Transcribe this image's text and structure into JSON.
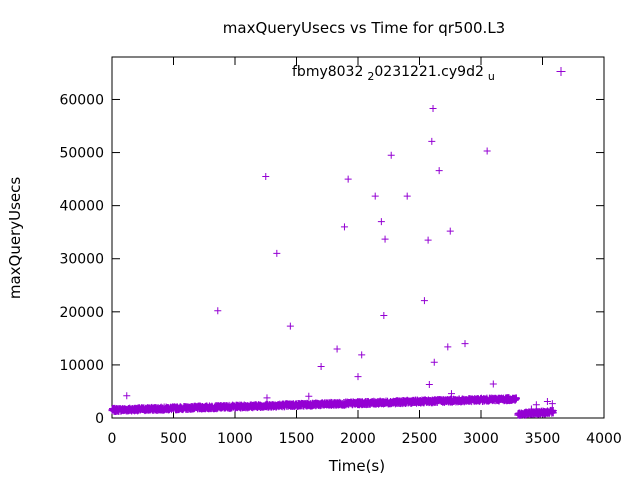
{
  "chart_data": {
    "type": "scatter",
    "title": "maxQueryUsecs vs Time for qr500.L3",
    "xlabel": "Time(s)",
    "ylabel": "maxQueryUsecs",
    "xlim": [
      0,
      4000
    ],
    "ylim": [
      0,
      68000
    ],
    "xticks": [
      0,
      500,
      1000,
      1500,
      2000,
      2500,
      3000,
      3500,
      4000
    ],
    "yticks": [
      0,
      10000,
      20000,
      30000,
      40000,
      50000,
      60000
    ],
    "grid": false,
    "legend_position": "top-right",
    "marker": "plus",
    "color": "#9400d3",
    "series": [
      {
        "name": "fbmy8032_20231221.cy9d2_u",
        "name_parts": [
          "fbmy8032",
          "2",
          "0231221.cy9d2",
          "u"
        ],
        "baseline_segments": [
          {
            "x_start": 0,
            "x_end": 3290,
            "y_start": 1500,
            "y_end": 3600,
            "spread": 300
          },
          {
            "x_start": 3300,
            "x_end": 3590,
            "y_start": 700,
            "y_end": 1200,
            "spread": 300
          }
        ],
        "points": [
          {
            "x": 120,
            "y": 4200
          },
          {
            "x": 860,
            "y": 20200
          },
          {
            "x": 1250,
            "y": 45500
          },
          {
            "x": 1260,
            "y": 3800
          },
          {
            "x": 1340,
            "y": 31000
          },
          {
            "x": 1450,
            "y": 17300
          },
          {
            "x": 1600,
            "y": 4100
          },
          {
            "x": 1700,
            "y": 9700
          },
          {
            "x": 1830,
            "y": 13000
          },
          {
            "x": 1890,
            "y": 36000
          },
          {
            "x": 1920,
            "y": 45000
          },
          {
            "x": 2000,
            "y": 7800
          },
          {
            "x": 2030,
            "y": 11900
          },
          {
            "x": 2140,
            "y": 41800
          },
          {
            "x": 2190,
            "y": 37000
          },
          {
            "x": 2210,
            "y": 19300
          },
          {
            "x": 2220,
            "y": 33700
          },
          {
            "x": 2270,
            "y": 49500
          },
          {
            "x": 2400,
            "y": 41800
          },
          {
            "x": 2540,
            "y": 22100
          },
          {
            "x": 2570,
            "y": 33500
          },
          {
            "x": 2580,
            "y": 6300
          },
          {
            "x": 2600,
            "y": 52100
          },
          {
            "x": 2610,
            "y": 58300
          },
          {
            "x": 2620,
            "y": 10500
          },
          {
            "x": 2660,
            "y": 46600
          },
          {
            "x": 2730,
            "y": 13400
          },
          {
            "x": 2750,
            "y": 35200
          },
          {
            "x": 2760,
            "y": 4600
          },
          {
            "x": 2870,
            "y": 14000
          },
          {
            "x": 3050,
            "y": 50300
          },
          {
            "x": 3100,
            "y": 6400
          },
          {
            "x": 3410,
            "y": 1700
          },
          {
            "x": 3450,
            "y": 2500
          },
          {
            "x": 3540,
            "y": 3100
          },
          {
            "x": 3580,
            "y": 2700
          }
        ]
      }
    ]
  }
}
